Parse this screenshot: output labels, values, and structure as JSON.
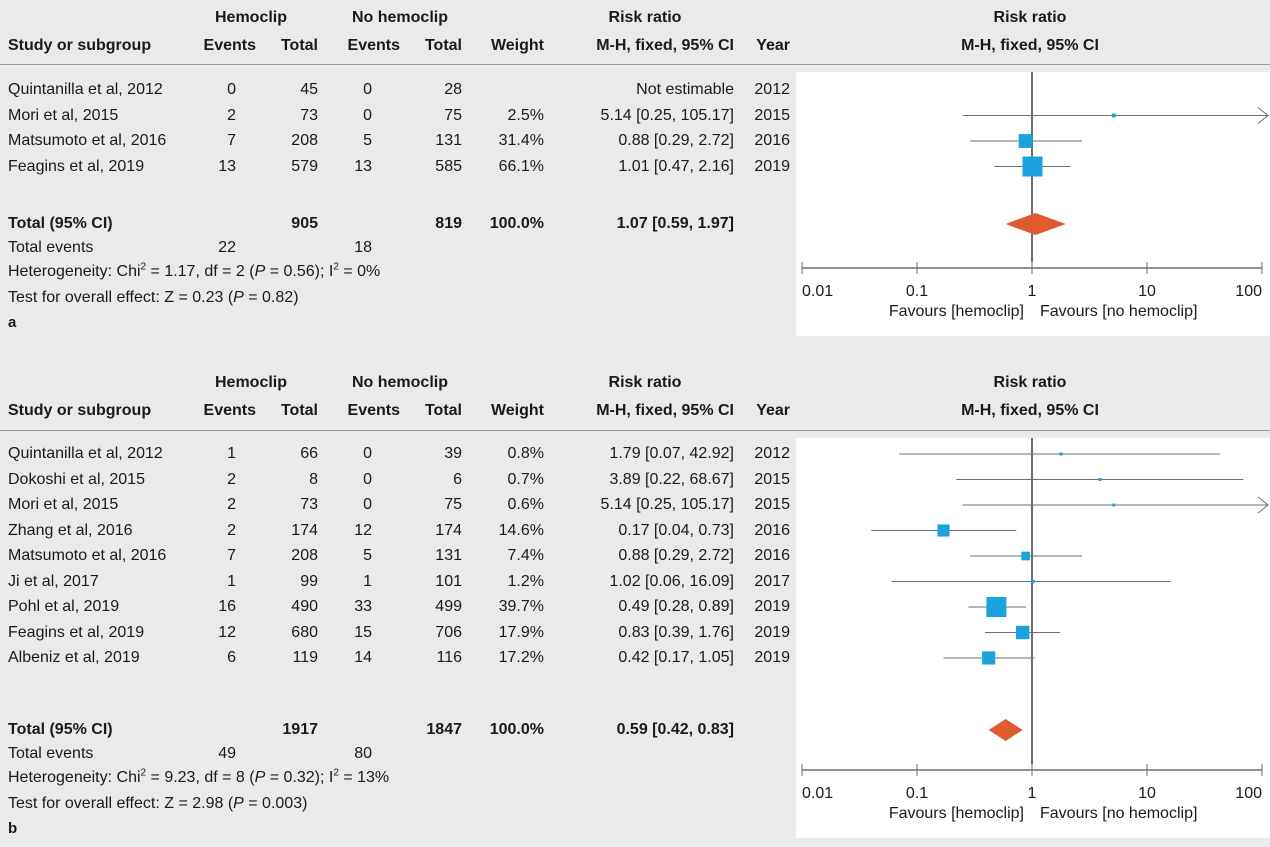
{
  "colors": {
    "marker": "#1aa3dd",
    "diamond": "#e05a30",
    "line": "#6e6e6e",
    "axis": "#6e6e6e"
  },
  "chart_data": [
    {
      "type": "forest",
      "panel_label": "a",
      "headers": {
        "group1": "Hemoclip",
        "group2": "No hemoclip",
        "study": "Study or subgroup",
        "events": "Events",
        "total": "Total",
        "weight": "Weight",
        "rr_title": "Risk ratio",
        "rr_method": "M-H, fixed, 95% CI",
        "year": "Year",
        "plot_title": "Risk ratio",
        "plot_method": "M-H, fixed, 95% CI"
      },
      "rows": [
        {
          "study": "Quintanilla et al, 2012",
          "e1": "0",
          "n1": "45",
          "e2": "0",
          "n2": "28",
          "weight": "",
          "ci": "Not estimable",
          "year": "2012",
          "rr": null,
          "lo": null,
          "hi": null,
          "w": 0
        },
        {
          "study": "Mori et al, 2015",
          "e1": "2",
          "n1": "73",
          "e2": "0",
          "n2": "75",
          "weight": "2.5%",
          "ci": "5.14 [0.25, 105.17]",
          "year": "2015",
          "rr": 5.14,
          "lo": 0.25,
          "hi": 105.17,
          "w": 2.5
        },
        {
          "study": "Matsumoto et al, 2016",
          "e1": "7",
          "n1": "208",
          "e2": "5",
          "n2": "131",
          "weight": "31.4%",
          "ci": "0.88 [0.29, 2.72]",
          "year": "2016",
          "rr": 0.88,
          "lo": 0.29,
          "hi": 2.72,
          "w": 31.4
        },
        {
          "study": "Feagins et al, 2019",
          "e1": "13",
          "n1": "579",
          "e2": "13",
          "n2": "585",
          "weight": "66.1%",
          "ci": "1.01 [0.47, 2.16]",
          "year": "2019",
          "rr": 1.01,
          "lo": 0.47,
          "hi": 2.16,
          "w": 66.1
        }
      ],
      "total": {
        "label": "Total (95% CI)",
        "n1": "905",
        "n2": "819",
        "weight": "100.0%",
        "ci": "1.07 [0.59, 1.97]",
        "rr": 1.07,
        "lo": 0.59,
        "hi": 1.97
      },
      "total_events": {
        "label": "Total events",
        "e1": "22",
        "e2": "18"
      },
      "heterogeneity": {
        "label": "Heterogeneity: Chi",
        "chi2": " = 1.17, df = 2 (",
        "p": "P",
        "p_val": " = 0.56); I",
        "i2": " = 0%"
      },
      "overall": {
        "label": "Test for overall effect: Z = 0.23 (",
        "p": "P",
        "p_val": " = 0.82)"
      },
      "axis": {
        "ticks": [
          "0.01",
          "0.1",
          "1",
          "10",
          "100"
        ],
        "tick_values": [
          0.01,
          0.1,
          1,
          10,
          100
        ],
        "scale": "log",
        "xlim": [
          0.01,
          100
        ],
        "left_label": "Favours [hemoclip]",
        "right_label": "Favours [no hemoclip]"
      }
    },
    {
      "type": "forest",
      "panel_label": "b",
      "headers": {
        "group1": "Hemoclip",
        "group2": "No hemoclip",
        "study": "Study or subgroup",
        "events": "Events",
        "total": "Total",
        "weight": "Weight",
        "rr_title": "Risk ratio",
        "rr_method": "M-H, fixed, 95% CI",
        "year": "Year",
        "plot_title": "Risk ratio",
        "plot_method": "M-H, fixed, 95% CI"
      },
      "rows": [
        {
          "study": "Quintanilla et al, 2012",
          "e1": "1",
          "n1": "66",
          "e2": "0",
          "n2": "39",
          "weight": "0.8%",
          "ci": "1.79 [0.07, 42.92]",
          "year": "2012",
          "rr": 1.79,
          "lo": 0.07,
          "hi": 42.92,
          "w": 0.8
        },
        {
          "study": "Dokoshi et al, 2015",
          "e1": "2",
          "n1": "8",
          "e2": "0",
          "n2": "6",
          "weight": "0.7%",
          "ci": "3.89 [0.22, 68.67]",
          "year": "2015",
          "rr": 3.89,
          "lo": 0.22,
          "hi": 68.67,
          "w": 0.7
        },
        {
          "study": "Mori et al, 2015",
          "e1": "2",
          "n1": "73",
          "e2": "0",
          "n2": "75",
          "weight": "0.6%",
          "ci": "5.14 [0.25, 105.17]",
          "year": "2015",
          "rr": 5.14,
          "lo": 0.25,
          "hi": 105.17,
          "w": 0.6
        },
        {
          "study": "Zhang et al, 2016",
          "e1": "2",
          "n1": "174",
          "e2": "12",
          "n2": "174",
          "weight": "14.6%",
          "ci": "0.17 [0.04, 0.73]",
          "year": "2016",
          "rr": 0.17,
          "lo": 0.04,
          "hi": 0.73,
          "w": 14.6
        },
        {
          "study": "Matsumoto et al, 2016",
          "e1": "7",
          "n1": "208",
          "e2": "5",
          "n2": "131",
          "weight": "7.4%",
          "ci": "0.88 [0.29, 2.72]",
          "year": "2016",
          "rr": 0.88,
          "lo": 0.29,
          "hi": 2.72,
          "w": 7.4
        },
        {
          "study": "Ji et al, 2017",
          "e1": "1",
          "n1": "99",
          "e2": "1",
          "n2": "101",
          "weight": "1.2%",
          "ci": "1.02 [0.06, 16.09]",
          "year": "2017",
          "rr": 1.02,
          "lo": 0.06,
          "hi": 16.09,
          "w": 1.2
        },
        {
          "study": "Pohl et al, 2019",
          "e1": "16",
          "n1": "490",
          "e2": "33",
          "n2": "499",
          "weight": "39.7%",
          "ci": "0.49 [0.28, 0.89]",
          "year": "2019",
          "rr": 0.49,
          "lo": 0.28,
          "hi": 0.89,
          "w": 39.7
        },
        {
          "study": "Feagins et al, 2019",
          "e1": "12",
          "n1": "680",
          "e2": "15",
          "n2": "706",
          "weight": "17.9%",
          "ci": "0.83 [0.39, 1.76]",
          "year": "2019",
          "rr": 0.83,
          "lo": 0.39,
          "hi": 1.76,
          "w": 17.9
        },
        {
          "study": "Albeniz et al, 2019",
          "e1": "6",
          "n1": "119",
          "e2": "14",
          "n2": "116",
          "weight": "17.2%",
          "ci": "0.42 [0.17, 1.05]",
          "year": "2019",
          "rr": 0.42,
          "lo": 0.17,
          "hi": 1.05,
          "w": 17.2
        }
      ],
      "total": {
        "label": "Total (95% CI)",
        "n1": "1917",
        "n2": "1847",
        "weight": "100.0%",
        "ci": "0.59 [0.42, 0.83]",
        "rr": 0.59,
        "lo": 0.42,
        "hi": 0.83
      },
      "total_events": {
        "label": "Total events",
        "e1": "49",
        "e2": "80"
      },
      "heterogeneity": {
        "label": "Heterogeneity: Chi",
        "chi2": " = 9.23, df = 8 (",
        "p": "P",
        "p_val": " = 0.32); I",
        "i2": " = 13%"
      },
      "overall": {
        "label": "Test for overall effect: Z = 2.98 (",
        "p": "P",
        "p_val": " = 0.003)"
      },
      "axis": {
        "ticks": [
          "0.01",
          "0.1",
          "1",
          "10",
          "100"
        ],
        "tick_values": [
          0.01,
          0.1,
          1,
          10,
          100
        ],
        "scale": "log",
        "xlim": [
          0.01,
          100
        ],
        "left_label": "Favours [hemoclip]",
        "right_label": "Favours [no hemoclip]"
      }
    }
  ]
}
